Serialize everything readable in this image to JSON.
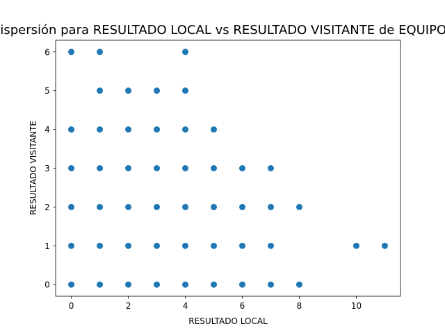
{
  "chart_data": {
    "type": "scatter",
    "title": "Dispersión para RESULTADO LOCAL vs RESULTADO VISITANTE de EQUIPOS",
    "xlabel": "RESULTADO LOCAL",
    "ylabel": "RESULTADO VISITANTE",
    "xlim": [
      -0.55,
      11.55
    ],
    "ylim": [
      -0.3,
      6.3
    ],
    "xticks": [
      0,
      2,
      4,
      6,
      8,
      10
    ],
    "yticks": [
      0,
      1,
      2,
      3,
      4,
      5,
      6
    ],
    "xtick_labels": [
      "0",
      "2",
      "4",
      "6",
      "8",
      "10"
    ],
    "ytick_labels": [
      "0",
      "1",
      "2",
      "3",
      "4",
      "5",
      "6"
    ],
    "grid": false,
    "marker_color": "#1f77b4",
    "points": [
      {
        "x": 0,
        "y": 0
      },
      {
        "x": 0,
        "y": 1
      },
      {
        "x": 0,
        "y": 2
      },
      {
        "x": 0,
        "y": 3
      },
      {
        "x": 0,
        "y": 4
      },
      {
        "x": 0,
        "y": 6
      },
      {
        "x": 1,
        "y": 0
      },
      {
        "x": 1,
        "y": 1
      },
      {
        "x": 1,
        "y": 2
      },
      {
        "x": 1,
        "y": 3
      },
      {
        "x": 1,
        "y": 4
      },
      {
        "x": 1,
        "y": 5
      },
      {
        "x": 1,
        "y": 6
      },
      {
        "x": 2,
        "y": 0
      },
      {
        "x": 2,
        "y": 1
      },
      {
        "x": 2,
        "y": 2
      },
      {
        "x": 2,
        "y": 3
      },
      {
        "x": 2,
        "y": 4
      },
      {
        "x": 2,
        "y": 5
      },
      {
        "x": 3,
        "y": 0
      },
      {
        "x": 3,
        "y": 1
      },
      {
        "x": 3,
        "y": 2
      },
      {
        "x": 3,
        "y": 3
      },
      {
        "x": 3,
        "y": 4
      },
      {
        "x": 3,
        "y": 5
      },
      {
        "x": 4,
        "y": 0
      },
      {
        "x": 4,
        "y": 1
      },
      {
        "x": 4,
        "y": 2
      },
      {
        "x": 4,
        "y": 3
      },
      {
        "x": 4,
        "y": 4
      },
      {
        "x": 4,
        "y": 5
      },
      {
        "x": 4,
        "y": 6
      },
      {
        "x": 5,
        "y": 0
      },
      {
        "x": 5,
        "y": 1
      },
      {
        "x": 5,
        "y": 2
      },
      {
        "x": 5,
        "y": 3
      },
      {
        "x": 5,
        "y": 4
      },
      {
        "x": 6,
        "y": 0
      },
      {
        "x": 6,
        "y": 1
      },
      {
        "x": 6,
        "y": 2
      },
      {
        "x": 6,
        "y": 3
      },
      {
        "x": 7,
        "y": 0
      },
      {
        "x": 7,
        "y": 1
      },
      {
        "x": 7,
        "y": 2
      },
      {
        "x": 7,
        "y": 3
      },
      {
        "x": 8,
        "y": 0
      },
      {
        "x": 8,
        "y": 2
      },
      {
        "x": 10,
        "y": 1
      },
      {
        "x": 11,
        "y": 1
      }
    ]
  }
}
